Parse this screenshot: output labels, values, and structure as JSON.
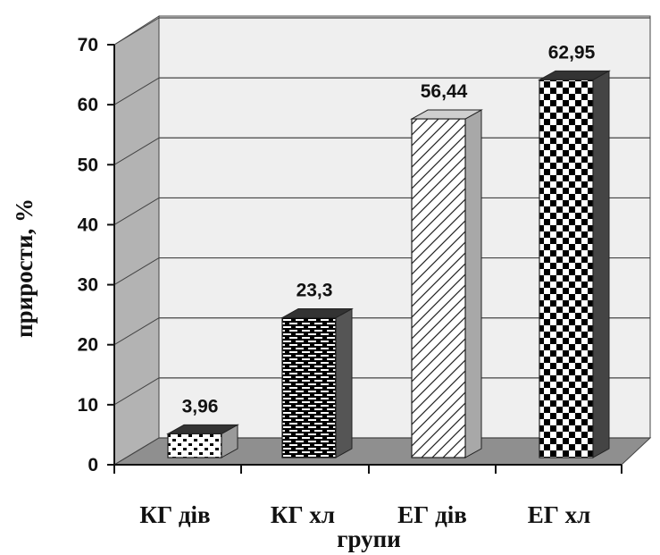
{
  "chart_data": {
    "type": "bar",
    "categories": [
      "КГ дів",
      "КГ хл",
      "ЕГ дів",
      "ЕГ хл"
    ],
    "values": [
      3.96,
      23.3,
      56.44,
      62.95
    ],
    "value_labels": [
      "3,96",
      "23,3",
      "56,44",
      "62,95"
    ],
    "xlabel": "групи",
    "ylabel": "прирости, %",
    "ylim": [
      0,
      70
    ],
    "yticks": [
      "0",
      "10",
      "20",
      "30",
      "40",
      "50",
      "60",
      "70"
    ],
    "grid": true,
    "style": "3d-patterned"
  }
}
